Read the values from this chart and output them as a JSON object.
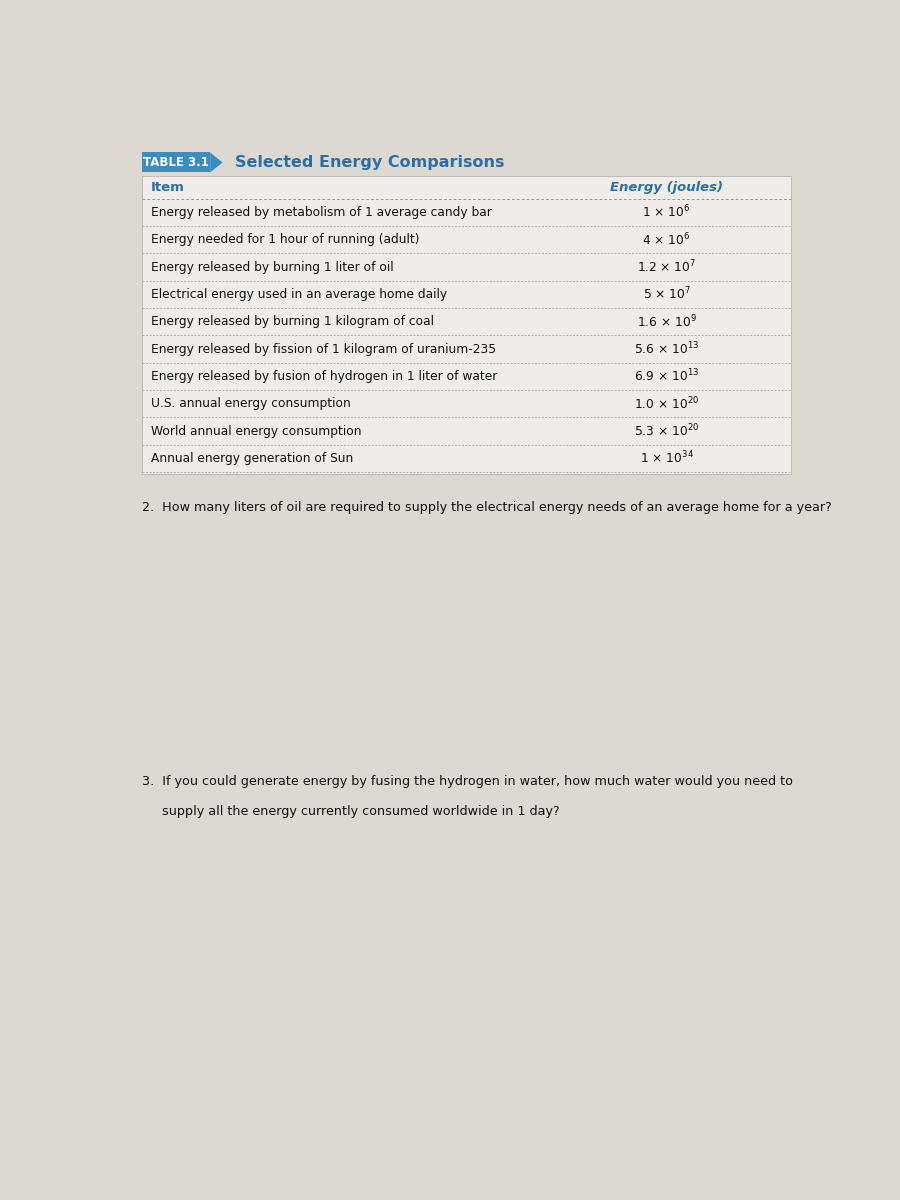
{
  "table_label": "TABLE 3.1",
  "table_title": "Selected Energy Comparisons",
  "col_headers": [
    "Item",
    "Energy (joules)"
  ],
  "rows": [
    [
      "Energy released by metabolism of 1 average candy bar",
      "1 × 10$^{6}$"
    ],
    [
      "Energy needed for 1 hour of running (adult)",
      "4 × 10$^{6}$"
    ],
    [
      "Energy released by burning 1 liter of oil",
      "1.2 × 10$^{7}$"
    ],
    [
      "Electrical energy used in an average home daily",
      "5 × 10$^{7}$"
    ],
    [
      "Energy released by burning 1 kilogram of coal",
      "1.6 × 10$^{9}$"
    ],
    [
      "Energy released by fission of 1 kilogram of uranium-235",
      "5.6 × 10$^{13}$"
    ],
    [
      "Energy released by fusion of hydrogen in 1 liter of water",
      "6.9 × 10$^{13}$"
    ],
    [
      "U.S. annual energy consumption",
      "1.0 × 10$^{20}$"
    ],
    [
      "World annual energy consumption",
      "5.3 × 10$^{20}$"
    ],
    [
      "Annual energy generation of Sun",
      "1 × 10$^{34}$"
    ]
  ],
  "question2": "2.  How many liters of oil are required to supply the electrical energy needs of an average home for a year?",
  "question3_line1": "3.  If you could generate energy by fusing the hydrogen in water, how much water would you need to",
  "question3_line2": "     supply all the energy currently consumed worldwide in 1 day?",
  "bg_color": "#ddd9d0",
  "table_bg": "#f0ede8",
  "header_bg": "#3a8dbf",
  "header_text_color": "#ffffff",
  "col_header_color": "#2a6fa8",
  "row_text_color": "#111111",
  "dotted_line_color": "#999999",
  "title_color": "#2a6fa8",
  "table_border_color": "#bbbbbb"
}
